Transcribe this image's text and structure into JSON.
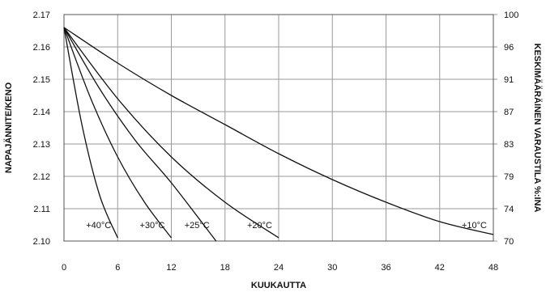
{
  "chart_data": {
    "type": "line",
    "xlabel": "KUUKAUTTA",
    "ylabel": "NAPAJÄNNITE/KENO",
    "y2label": "KESKIMÄÄRÄINEN VARAUSTILA %:INA",
    "xlim": [
      0,
      48
    ],
    "ylim": [
      2.1,
      2.17
    ],
    "x_ticks": [
      0,
      6,
      12,
      18,
      24,
      30,
      36,
      42,
      48
    ],
    "y_ticks": [
      2.1,
      2.11,
      2.12,
      2.13,
      2.14,
      2.15,
      2.16,
      2.17
    ],
    "y_tick_labels": [
      "2.10",
      "2.11",
      "2.12",
      "2.13",
      "2.14",
      "2.15",
      "2.16",
      "2.17"
    ],
    "y2_ticks": [
      70,
      74,
      79,
      83,
      87,
      91,
      96,
      100
    ],
    "grid": true,
    "series": [
      {
        "name": "+40°C",
        "x": [
          0,
          2,
          4,
          6
        ],
        "y": [
          2.166,
          2.136,
          2.114,
          2.101
        ]
      },
      {
        "name": "+30°C",
        "x": [
          0,
          3,
          6,
          9,
          12
        ],
        "y": [
          2.166,
          2.144,
          2.126,
          2.112,
          2.101
        ]
      },
      {
        "name": "+25°C",
        "x": [
          0,
          4,
          8,
          12,
          17
        ],
        "y": [
          2.166,
          2.147,
          2.131,
          2.118,
          2.1
        ]
      },
      {
        "name": "+20°C",
        "x": [
          0,
          6,
          12,
          18,
          24
        ],
        "y": [
          2.166,
          2.144,
          2.126,
          2.112,
          2.101
        ]
      },
      {
        "name": "+10°C",
        "x": [
          0,
          6,
          12,
          18,
          24,
          30,
          36,
          42,
          48
        ],
        "y": [
          2.166,
          2.155,
          2.145,
          2.136,
          2.127,
          2.119,
          2.112,
          2.106,
          2.102
        ]
      }
    ]
  }
}
